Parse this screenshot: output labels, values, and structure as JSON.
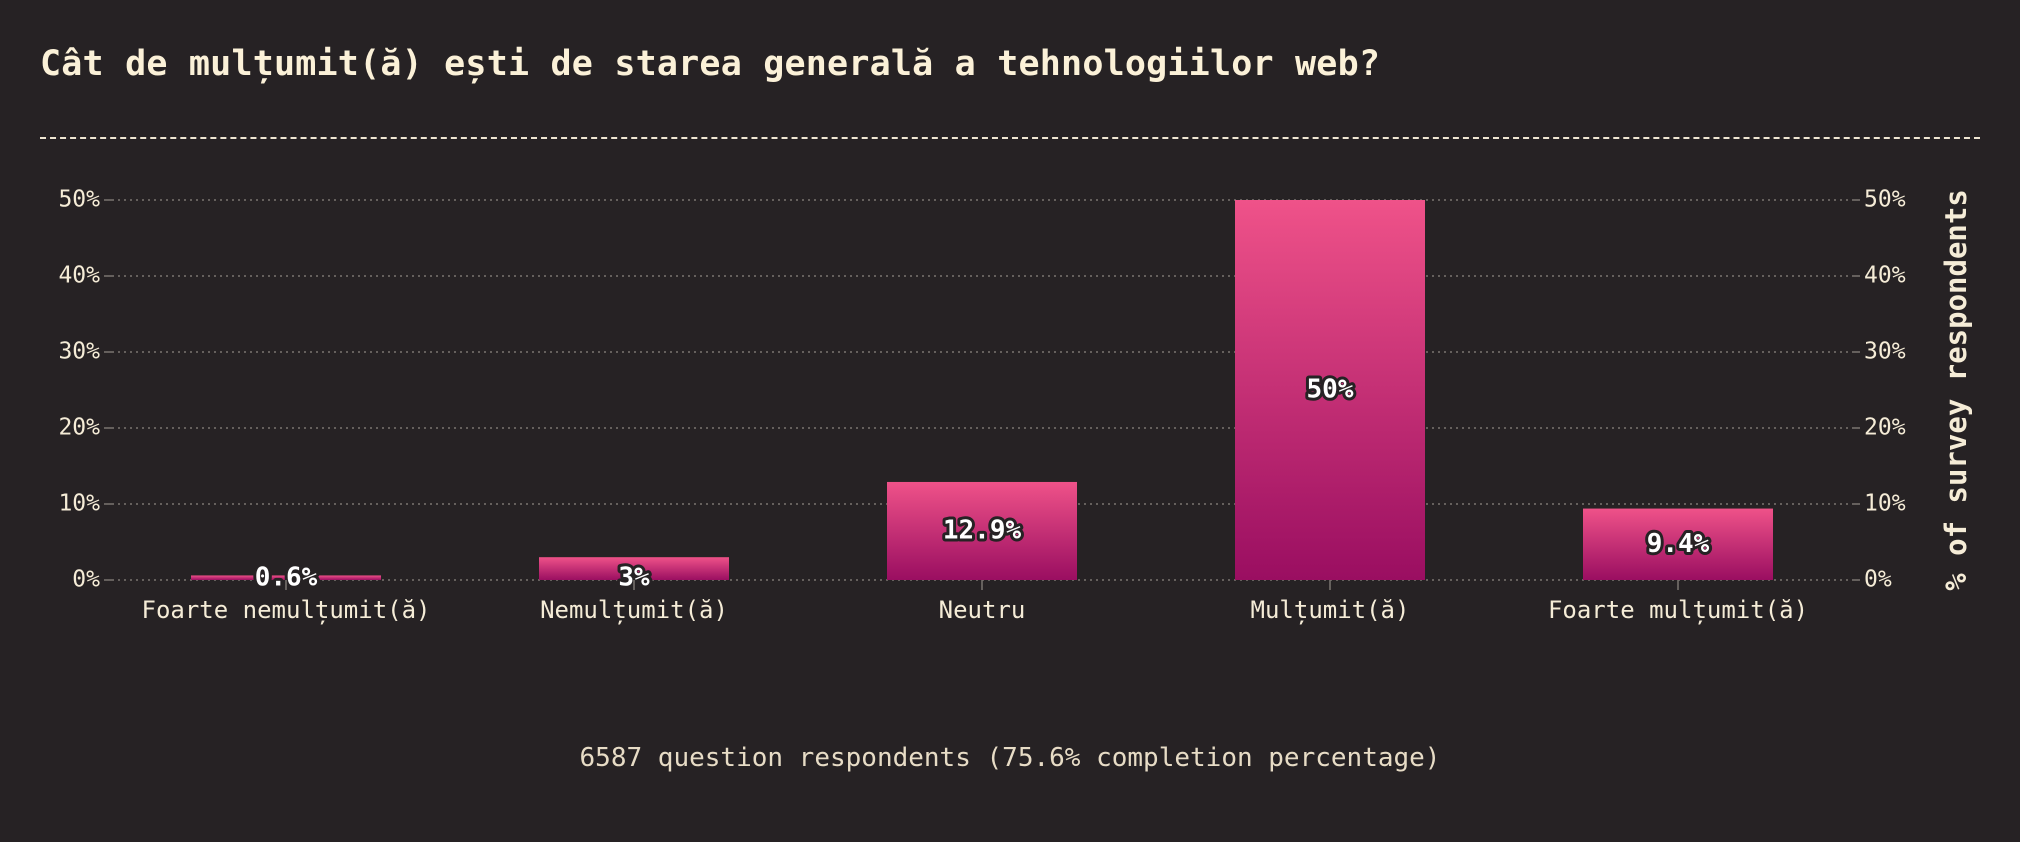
{
  "title": "Cât de mulțumit(ă) ești de starea generală a tehnologiilor web?",
  "footer": "6587 question respondents (75.6% completion percentage)",
  "colors": {
    "background": "#262224",
    "text": "#f5ecd7",
    "bar_top": "#ef5289",
    "bar_bottom": "#9a0e61",
    "grid": "#7a7470"
  },
  "chart_data": {
    "type": "bar",
    "categories": [
      "Foarte nemulțumit(ă)",
      "Nemulțumit(ă)",
      "Neutru",
      "Mulțumit(ă)",
      "Foarte mulțumit(ă)"
    ],
    "values": [
      0.6,
      3,
      12.9,
      50,
      9.4
    ],
    "value_labels": [
      "0.6%",
      "3%",
      "12.9%",
      "50%",
      "9.4%"
    ],
    "ylabel": "% of survey respondents",
    "ylim": [
      0,
      50
    ],
    "yticks": [
      "0%",
      "10%",
      "20%",
      "30%",
      "40%",
      "50%"
    ],
    "grid": true,
    "y_axis_both_sides": true
  }
}
